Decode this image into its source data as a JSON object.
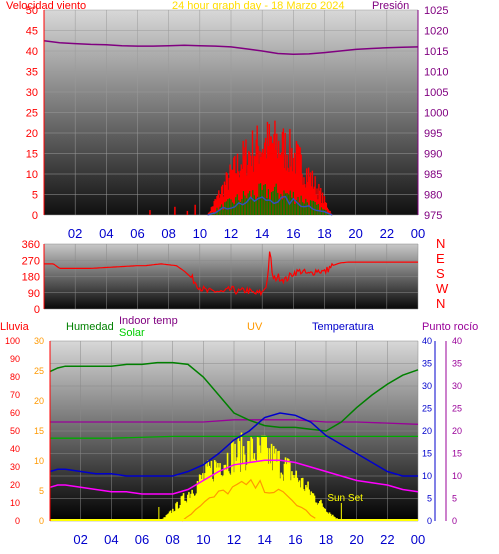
{
  "header": {
    "wind_label": "Velocidad viento",
    "title": "24 hour graph day - 18 Marzo 2024",
    "pressure_label": "Presión"
  },
  "colors": {
    "wind": "#ff0000",
    "gust_green": "#008000",
    "avg_wind": "#3050c0",
    "pressure": "#800080",
    "direction": "#ff0000",
    "humidity": "#008000",
    "solar": "#ffff00",
    "uv": "#ff9900",
    "temperature": "#0000cc",
    "dew_point": "#990099",
    "indoor_temp": "#800080",
    "wind_chill": "#ff00ff",
    "outdoor_humidity_mark": "#00aa00",
    "title": "#ffdd00",
    "axis_red": "#ff0000"
  },
  "chart_data": [
    {
      "type": "line",
      "name": "wind-pressure",
      "x_ticks": [
        "02",
        "04",
        "06",
        "08",
        "10",
        "12",
        "14",
        "16",
        "18",
        "20",
        "22",
        "00"
      ],
      "left_ticks": [
        "0",
        "5",
        "10",
        "15",
        "20",
        "25",
        "30",
        "35",
        "40",
        "45",
        "50"
      ],
      "right_ticks": [
        "975",
        "980",
        "985",
        "990",
        "995",
        "1000",
        "1005",
        "1010",
        "1015",
        "1020",
        "1025"
      ],
      "ylim_left": [
        0,
        50
      ],
      "ylim_right": [
        975,
        1025
      ],
      "xlim": [
        0,
        24
      ],
      "pressure": {
        "x": [
          0,
          1,
          2,
          3,
          4,
          5,
          6,
          7,
          8,
          9,
          10,
          11,
          12,
          13,
          14,
          15,
          16,
          17,
          18,
          19,
          20,
          21,
          22,
          23,
          24
        ],
        "y": [
          1017.5,
          1017,
          1016.8,
          1016.6,
          1016.5,
          1016.3,
          1016.2,
          1016.2,
          1016.3,
          1016.4,
          1016.3,
          1016.2,
          1016,
          1015.5,
          1015,
          1014.4,
          1014.2,
          1014.3,
          1014.6,
          1015,
          1015.4,
          1015.6,
          1015.8,
          1015.9,
          1016
        ]
      },
      "wind_window": [
        10.5,
        18.5
      ],
      "wind_peak": 24
    },
    {
      "type": "line",
      "name": "wind-direction",
      "left_ticks": [
        "0",
        "90",
        "180",
        "270",
        "360"
      ],
      "right_ticks": [
        "N",
        "W",
        "S",
        "E",
        "N"
      ],
      "ylim": [
        0,
        360
      ],
      "direction": {
        "x": [
          0,
          0.6,
          1,
          2,
          3,
          4,
          5,
          6,
          6.5,
          7,
          7.5,
          8,
          8.5,
          9,
          9.5,
          10,
          10.5,
          11,
          11.5,
          12,
          12.5,
          13,
          13.5,
          14,
          14.3,
          14.5,
          14.7,
          15,
          15.5,
          16,
          16.5,
          17,
          17.5,
          18,
          18.5,
          19,
          19.5,
          20,
          21,
          22,
          23,
          24
        ],
        "y": [
          250,
          250,
          225,
          225,
          225,
          230,
          235,
          240,
          240,
          245,
          250,
          245,
          240,
          210,
          170,
          120,
          95,
          100,
          90,
          110,
          95,
          105,
          85,
          90,
          140,
          320,
          160,
          180,
          160,
          200,
          210,
          190,
          215,
          205,
          240,
          255,
          260,
          260,
          260,
          260,
          260,
          260
        ]
      }
    },
    {
      "type": "line",
      "name": "temperature-humidity-solar",
      "headers": {
        "rain": "Lluvia",
        "humidity": "Humedad",
        "solar": "Solar",
        "indoor": "Indoor temp",
        "uv": "UV",
        "temperature": "Temperatura",
        "dew": "Punto rocío"
      },
      "rain_ticks": [
        "0",
        "10",
        "20",
        "30",
        "40",
        "50",
        "60",
        "70",
        "80",
        "90",
        "100"
      ],
      "uv_ticks": [
        "0",
        "5",
        "10",
        "15",
        "20",
        "25",
        "30"
      ],
      "temp_ticks": [
        "0",
        "5",
        "10",
        "15",
        "20",
        "25",
        "30",
        "35",
        "40"
      ],
      "dew_ticks": [
        "0",
        "5",
        "10",
        "15",
        "20",
        "25",
        "30",
        "35",
        "40"
      ],
      "x_ticks": [
        "02",
        "04",
        "06",
        "08",
        "10",
        "12",
        "14",
        "16",
        "18",
        "20",
        "22",
        "00"
      ],
      "ylim_humidity": [
        0,
        100
      ],
      "ylim_temp": [
        0,
        40
      ],
      "sunset_label": "Sun Set",
      "sunrise_x": 7.1,
      "sunset_x": 19.0,
      "humidity": {
        "x": [
          0,
          0.5,
          1,
          2,
          3,
          4,
          5,
          6,
          7,
          8,
          9,
          10,
          11,
          12,
          13,
          14,
          15,
          16,
          17,
          18,
          19,
          20,
          21,
          22,
          23,
          24
        ],
        "y": [
          83,
          85,
          86,
          86,
          86,
          86,
          87,
          87,
          88,
          88,
          87,
          80,
          70,
          60,
          56,
          53,
          52,
          52,
          51,
          50,
          55,
          63,
          70,
          76,
          81,
          84
        ]
      },
      "outdoor_humidity_flat": {
        "x": [
          0,
          4,
          8,
          10,
          12,
          14,
          16,
          18,
          20,
          22,
          24
        ],
        "y": [
          46,
          46,
          47,
          47,
          47,
          47,
          47,
          47,
          47,
          47,
          47
        ]
      },
      "indoor_temp": {
        "x": [
          0,
          4,
          8,
          12,
          16,
          20,
          24
        ],
        "y": [
          22,
          22,
          22,
          22,
          22,
          22,
          22
        ]
      },
      "temperature": {
        "x": [
          0,
          0.5,
          1,
          2,
          3,
          4,
          5,
          6,
          7,
          8,
          9,
          10,
          11,
          12,
          13,
          14,
          15,
          16,
          17,
          18,
          19,
          20,
          21,
          22,
          23,
          24
        ],
        "y": [
          11,
          11.5,
          11.5,
          11,
          10.5,
          10.5,
          10,
          10,
          10,
          10,
          11,
          12.5,
          15,
          18,
          20,
          23,
          24,
          23.5,
          22,
          19,
          17,
          15,
          13,
          11,
          10,
          10
        ]
      },
      "wind_chill": {
        "x": [
          0,
          0.5,
          1,
          2,
          3,
          4,
          5,
          6,
          7,
          8,
          9,
          10,
          11,
          12,
          13,
          14,
          15,
          16,
          17,
          18,
          19,
          20,
          21,
          22,
          23,
          24
        ],
        "y": [
          7.5,
          8,
          8,
          7.5,
          7,
          6.5,
          6.5,
          6,
          6,
          6,
          7,
          9,
          11,
          12.5,
          13,
          13.5,
          13.5,
          13,
          12,
          11,
          10,
          9,
          8.5,
          8,
          7,
          6.5
        ]
      },
      "dew_point": {
        "x": [
          0,
          4,
          8,
          10,
          12,
          14,
          16,
          18,
          20,
          24
        ],
        "y": [
          22,
          22,
          22,
          22,
          22.5,
          22.5,
          22.5,
          22,
          22,
          21.5
        ]
      },
      "solar_peak": 50
    }
  ]
}
